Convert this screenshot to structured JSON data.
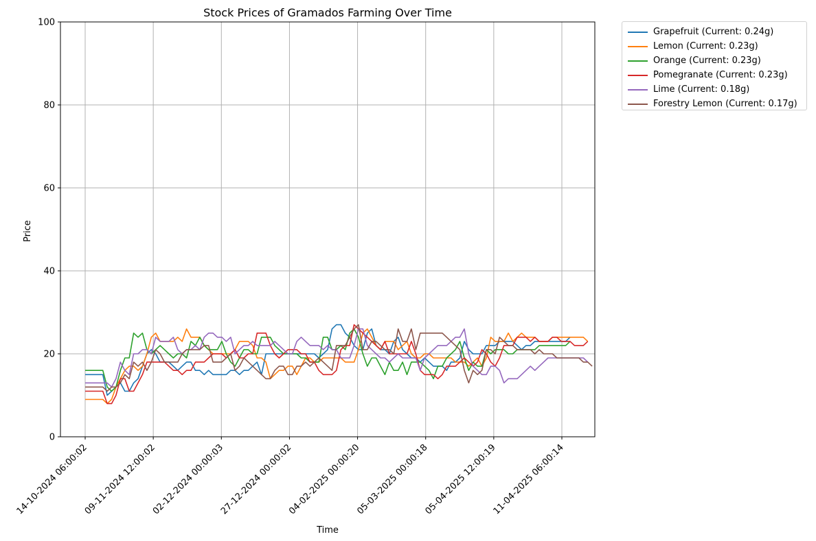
{
  "chart_data": {
    "type": "line",
    "title": "Stock Prices of Gramados Farming Over Time",
    "xlabel": "Time",
    "ylabel": "Price",
    "ylim": [
      0,
      100
    ],
    "yticks": [
      0,
      20,
      40,
      60,
      80,
      100
    ],
    "xticks": [
      "14-10-2024 06:00:02",
      "09-11-2024 12:00:02",
      "02-12-2024 00:00:03",
      "27-12-2024 00:00:02",
      "04-02-2025 00:00:20",
      "05-03-2025 00:00:18",
      "05-04-2025 12:00:19",
      "11-04-2025 06:00:14"
    ],
    "grid": true,
    "legend_position": "outside-top-right",
    "series": [
      {
        "name": "Grapefruit (Current: 0.24g)",
        "color": "#1f77b4",
        "values": [
          15,
          15,
          15,
          15,
          15,
          10,
          11,
          12,
          13,
          11,
          11,
          13,
          14,
          17,
          20,
          21,
          20,
          18,
          18,
          18,
          17,
          16,
          17,
          18,
          18,
          16,
          16,
          15,
          16,
          15,
          15,
          15,
          15,
          16,
          16,
          15,
          16,
          16,
          17,
          18,
          15,
          20,
          20,
          20,
          20,
          20,
          20,
          20,
          20,
          20,
          20,
          20,
          20,
          19,
          20,
          21,
          26,
          27,
          27,
          25,
          24,
          22,
          21,
          21,
          25,
          26,
          22,
          21,
          21,
          20,
          23,
          24,
          21,
          20,
          19,
          19,
          18,
          19,
          18,
          17,
          17,
          17,
          16,
          18,
          18,
          19,
          23,
          21,
          20,
          20,
          20,
          22,
          22,
          22,
          23,
          23,
          23,
          23,
          22,
          21,
          22,
          22,
          23,
          23,
          23,
          23,
          23,
          23,
          23,
          23,
          24
        ]
      },
      {
        "name": "Lemon (Current: 0.23g)",
        "color": "#ff7f0e",
        "values": [
          9,
          9,
          9,
          9,
          9,
          8,
          9,
          12,
          14,
          16,
          17,
          17,
          16,
          17,
          20,
          24,
          25,
          23,
          23,
          23,
          23,
          24,
          23,
          26,
          24,
          24,
          24,
          22,
          21,
          20,
          20,
          20,
          20,
          20,
          21,
          23,
          23,
          23,
          22,
          19,
          19,
          18,
          14,
          15,
          16,
          16,
          17,
          17,
          15,
          17,
          19,
          19,
          18,
          18,
          19,
          19,
          19,
          19,
          19,
          18,
          18,
          18,
          21,
          25,
          26,
          24,
          22,
          21,
          23,
          23,
          23,
          21,
          22,
          23,
          20,
          19,
          19,
          20,
          20,
          19,
          19,
          19,
          19,
          19,
          18,
          18,
          18,
          17,
          18,
          19,
          17,
          19,
          24,
          23,
          23,
          23,
          25,
          23,
          24,
          25,
          24,
          24,
          24,
          23,
          23,
          23,
          24,
          24,
          24,
          24,
          24,
          24,
          24,
          24,
          23
        ]
      },
      {
        "name": "Orange (Current: 0.23g)",
        "color": "#2ca02c",
        "values": [
          16,
          16,
          16,
          16,
          16,
          12,
          11,
          12,
          16,
          19,
          19,
          25,
          24,
          25,
          21,
          20,
          21,
          22,
          21,
          20,
          19,
          20,
          20,
          19,
          23,
          22,
          24,
          22,
          21,
          21,
          21,
          23,
          20,
          18,
          17,
          19,
          21,
          21,
          20,
          20,
          24,
          24,
          24,
          22,
          21,
          20,
          20,
          20,
          20,
          19,
          19,
          18,
          18,
          18,
          24,
          24,
          21,
          21,
          22,
          21,
          25,
          26,
          24,
          20,
          17,
          19,
          19,
          17,
          15,
          18,
          16,
          16,
          18,
          15,
          18,
          18,
          18,
          17,
          16,
          14,
          17,
          17,
          19,
          20,
          21,
          23,
          19,
          16,
          18,
          17,
          17,
          21,
          20,
          21,
          21,
          21,
          20,
          20,
          21,
          21,
          21,
          21,
          21,
          22,
          22,
          22,
          22,
          22,
          22,
          22,
          23
        ]
      },
      {
        "name": "Pomegranate (Current: 0.23g)",
        "color": "#d62728",
        "values": [
          11,
          11,
          11,
          11,
          11,
          8,
          8,
          10,
          14,
          14,
          11,
          11,
          13,
          15,
          18,
          18,
          18,
          18,
          18,
          17,
          16,
          16,
          15,
          16,
          16,
          18,
          18,
          18,
          19,
          20,
          20,
          20,
          19,
          20,
          21,
          19,
          19,
          20,
          20,
          25,
          25,
          25,
          22,
          20,
          19,
          20,
          21,
          21,
          21,
          20,
          20,
          18,
          18,
          16,
          15,
          15,
          15,
          16,
          21,
          22,
          22,
          27,
          26,
          25,
          24,
          23,
          22,
          21,
          23,
          20,
          20,
          20,
          20,
          20,
          23,
          20,
          16,
          15,
          15,
          15,
          14,
          15,
          17,
          17,
          17,
          18,
          19,
          18,
          17,
          18,
          21,
          20,
          18,
          17,
          19,
          22,
          22,
          22,
          24,
          24,
          24,
          23,
          24,
          23,
          23,
          23,
          24,
          24,
          23,
          23,
          23,
          22,
          22,
          22,
          23
        ]
      },
      {
        "name": "Lime (Current: 0.18g)",
        "color": "#9467bd",
        "values": [
          13,
          13,
          13,
          13,
          13,
          13,
          12,
          14,
          18,
          16,
          15,
          20,
          20,
          21,
          21,
          20,
          24,
          23,
          23,
          23,
          24,
          21,
          20,
          21,
          21,
          22,
          21,
          24,
          25,
          25,
          24,
          24,
          23,
          24,
          20,
          21,
          22,
          22,
          23,
          22,
          22,
          22,
          22,
          23,
          22,
          21,
          20,
          20,
          23,
          24,
          23,
          22,
          22,
          22,
          21,
          22,
          21,
          21,
          19,
          19,
          19,
          22,
          26,
          26,
          22,
          21,
          20,
          19,
          19,
          18,
          19,
          20,
          19,
          19,
          19,
          19,
          16,
          19,
          20,
          21,
          22,
          22,
          22,
          23,
          24,
          24,
          26,
          20,
          17,
          16,
          15,
          15,
          17,
          17,
          16,
          13,
          14,
          14,
          14,
          15,
          16,
          17,
          16,
          17,
          18,
          19,
          19,
          19,
          19,
          19,
          19,
          19,
          19,
          19,
          18
        ]
      },
      {
        "name": "Forestry Lemon (Current: 0.17g)",
        "color": "#8c564b",
        "values": [
          12,
          12,
          12,
          12,
          12,
          11,
          12,
          12,
          13,
          15,
          14,
          18,
          17,
          18,
          16,
          18,
          21,
          20,
          18,
          18,
          18,
          18,
          20,
          21,
          21,
          21,
          21,
          22,
          22,
          18,
          18,
          18,
          19,
          20,
          16,
          17,
          19,
          18,
          17,
          16,
          15,
          14,
          14,
          16,
          17,
          17,
          15,
          15,
          17,
          17,
          18,
          17,
          18,
          19,
          18,
          17,
          16,
          22,
          22,
          22,
          24,
          26,
          27,
          21,
          21,
          23,
          23,
          22,
          21,
          21,
          20,
          26,
          23,
          23,
          26,
          21,
          25,
          25,
          25,
          25,
          25,
          25,
          24,
          23,
          22,
          21,
          16,
          13,
          16,
          15,
          16,
          21,
          21,
          20,
          24,
          23,
          22,
          22,
          21,
          21,
          21,
          21,
          20,
          21,
          20,
          20,
          20,
          19,
          19,
          19,
          19,
          19,
          19,
          18,
          18,
          17
        ]
      }
    ]
  }
}
